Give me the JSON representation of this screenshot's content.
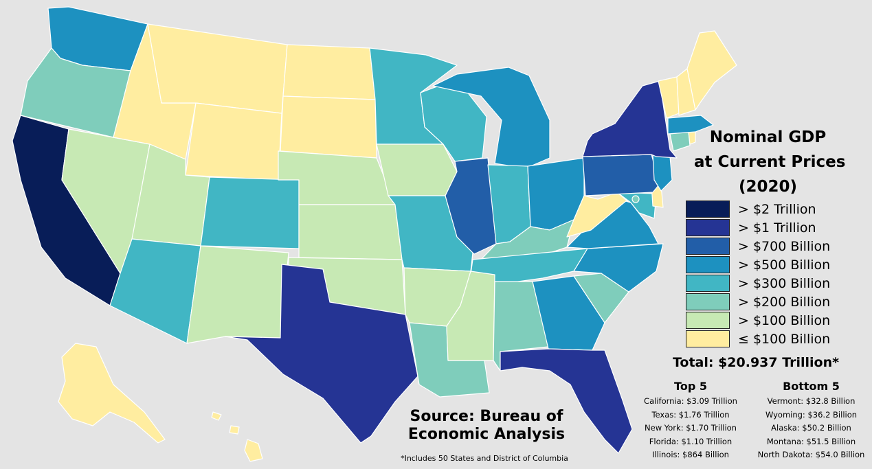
{
  "title": {
    "line1": "Nominal GDP",
    "line2": "at Current Prices",
    "line3": "(2020)"
  },
  "legend": [
    {
      "label": "> $2 Trillion",
      "color": "#081d58"
    },
    {
      "label": "> $1 Trillion",
      "color": "#253494"
    },
    {
      "label": "> $700 Billion",
      "color": "#225ea8"
    },
    {
      "label": "> $500 Billion",
      "color": "#1d91c0"
    },
    {
      "label": "> $300 Billion",
      "color": "#41b6c4"
    },
    {
      "label": "> $200 Billion",
      "color": "#7fcdbb"
    },
    {
      "label": "> $100 Billion",
      "color": "#c7e9b4"
    },
    {
      "label": "≤ $100 Billion",
      "color": "#ffeda0"
    }
  ],
  "total": "Total: $20.937 Trillion*",
  "top5": {
    "heading": "Top 5",
    "items": [
      "California: $3.09 Trillion",
      "Texas: $1.76 Trillion",
      "New York: $1.70 Trillion",
      "Florida: $1.10 Trillion",
      "Illinois: $864 Billion"
    ]
  },
  "bottom5": {
    "heading": "Bottom 5",
    "items": [
      "Vermont: $32.8 Billion",
      "Wyoming: $36.2 Billion",
      "Alaska: $50.2 Billion",
      "Montana: $51.5 Billion",
      "North Dakota: $54.0 Billion"
    ]
  },
  "source": {
    "line1": "Source: Bureau of",
    "line2": "Economic Analysis"
  },
  "footnote": "*Includes 50 States and District of Columbia",
  "states": [
    {
      "name": "Washington",
      "tier": 3
    },
    {
      "name": "Oregon",
      "tier": 5
    },
    {
      "name": "California",
      "tier": 0
    },
    {
      "name": "Nevada",
      "tier": 6
    },
    {
      "name": "Idaho",
      "tier": 7
    },
    {
      "name": "Montana",
      "tier": 7
    },
    {
      "name": "Wyoming",
      "tier": 7
    },
    {
      "name": "Utah",
      "tier": 6
    },
    {
      "name": "Arizona",
      "tier": 4
    },
    {
      "name": "Colorado",
      "tier": 4
    },
    {
      "name": "New Mexico",
      "tier": 6
    },
    {
      "name": "North Dakota",
      "tier": 7
    },
    {
      "name": "South Dakota",
      "tier": 7
    },
    {
      "name": "Nebraska",
      "tier": 6
    },
    {
      "name": "Kansas",
      "tier": 6
    },
    {
      "name": "Oklahoma",
      "tier": 6
    },
    {
      "name": "Texas",
      "tier": 1
    },
    {
      "name": "Minnesota",
      "tier": 4
    },
    {
      "name": "Iowa",
      "tier": 6
    },
    {
      "name": "Missouri",
      "tier": 4
    },
    {
      "name": "Arkansas",
      "tier": 6
    },
    {
      "name": "Louisiana",
      "tier": 5
    },
    {
      "name": "Wisconsin",
      "tier": 4
    },
    {
      "name": "Illinois",
      "tier": 2
    },
    {
      "name": "Michigan",
      "tier": 3
    },
    {
      "name": "Indiana",
      "tier": 4
    },
    {
      "name": "Ohio",
      "tier": 3
    },
    {
      "name": "Kentucky",
      "tier": 5
    },
    {
      "name": "Tennessee",
      "tier": 4
    },
    {
      "name": "Mississippi",
      "tier": 6
    },
    {
      "name": "Alabama",
      "tier": 5
    },
    {
      "name": "Georgia",
      "tier": 3
    },
    {
      "name": "Florida",
      "tier": 1
    },
    {
      "name": "South Carolina",
      "tier": 5
    },
    {
      "name": "North Carolina",
      "tier": 3
    },
    {
      "name": "Virginia",
      "tier": 3
    },
    {
      "name": "West Virginia",
      "tier": 7
    },
    {
      "name": "Maryland",
      "tier": 4
    },
    {
      "name": "District of Columbia",
      "tier": 5
    },
    {
      "name": "Delaware",
      "tier": 7
    },
    {
      "name": "Pennsylvania",
      "tier": 2
    },
    {
      "name": "New Jersey",
      "tier": 3
    },
    {
      "name": "New York",
      "tier": 1
    },
    {
      "name": "Connecticut",
      "tier": 5
    },
    {
      "name": "Rhode Island",
      "tier": 7
    },
    {
      "name": "Massachusetts",
      "tier": 3
    },
    {
      "name": "Vermont",
      "tier": 7
    },
    {
      "name": "New Hampshire",
      "tier": 7
    },
    {
      "name": "Maine",
      "tier": 7
    },
    {
      "name": "Alaska",
      "tier": 7
    },
    {
      "name": "Hawaii",
      "tier": 7
    }
  ]
}
